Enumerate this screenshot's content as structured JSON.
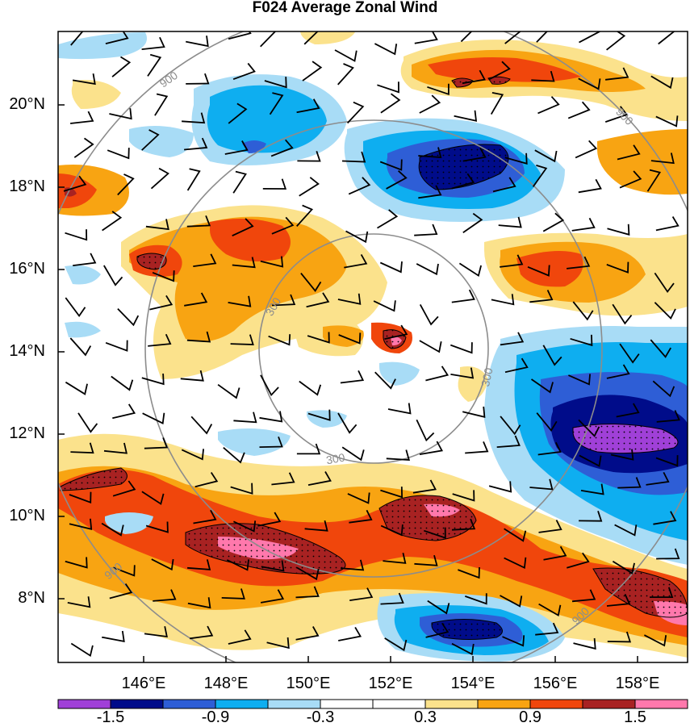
{
  "title": "F024 Average Zonal Wind",
  "map": {
    "lat_labels": [
      "20°N",
      "18°N",
      "16°N",
      "14°N",
      "12°N",
      "10°N",
      "8°N"
    ],
    "lon_labels": [
      "146°E",
      "148°E",
      "150°E",
      "152°E",
      "154°E",
      "156°E",
      "158°E"
    ],
    "range_rings": [
      "900",
      "300",
      "300",
      "300",
      "900",
      "900",
      "900"
    ]
  },
  "colorbar": {
    "colors": [
      "#a040d8",
      "#000c8a",
      "#2e5ed6",
      "#0eaef0",
      "#a8dcf6",
      "#ffffff",
      "#ffffff",
      "#fbe28c",
      "#f8a412",
      "#f0460c",
      "#a82222",
      "#ff78ac"
    ],
    "labels": [
      "-1.5",
      "-0.9",
      "-0.3",
      "0.3",
      "0.9",
      "1.5"
    ]
  }
}
